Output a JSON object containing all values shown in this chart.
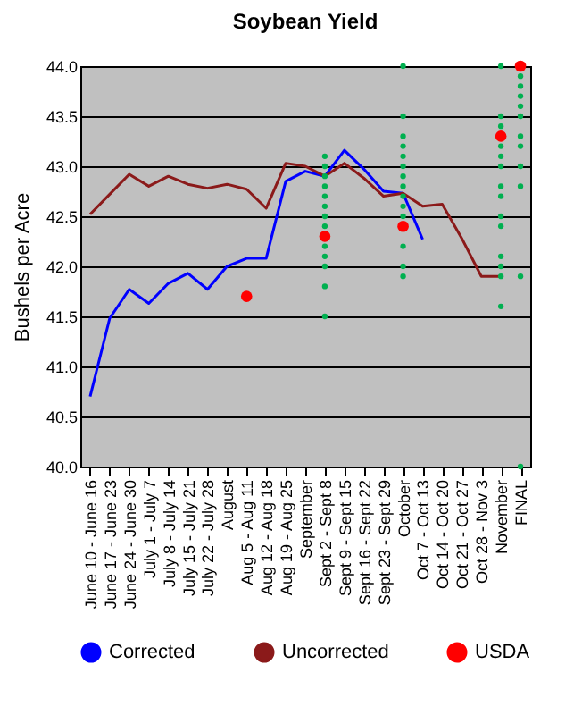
{
  "chart_data": {
    "type": "line",
    "title": "Soybean Yield",
    "ylabel": "Bushels per Acre",
    "categories": [
      "June 10 - June 16",
      "June 17 - June 23",
      "June 24 - June 30",
      "July 1 - July 7",
      "July 8 - July 14",
      "July 15 - July 21",
      "July 22 - July 28",
      "August",
      "Aug 5 - Aug 11",
      "Aug 12 - Aug 18",
      "Aug 19 - Aug 25",
      "September",
      "Sept 2 - Sept 8",
      "Sept 9 - Sept 15",
      "Sept 16 - Sept 22",
      "Sept 23 - Sept 29",
      "October",
      "Oct 7 - Oct 13",
      "Oct 14 - Oct 20",
      "Oct 21 - Oct 27",
      "Oct 28 - Nov 3",
      "November",
      "FINAL"
    ],
    "series": [
      {
        "name": "Corrected",
        "color": "#0000ff",
        "values": [
          40.7,
          41.48,
          41.77,
          41.63,
          41.83,
          41.93,
          41.77,
          42.0,
          42.08,
          42.08,
          42.85,
          42.95,
          42.9,
          43.16,
          42.97,
          42.75,
          42.73,
          42.27,
          null,
          null,
          null,
          null,
          null
        ]
      },
      {
        "name": "Uncorrected",
        "color": "#8b1a1a",
        "values": [
          42.52,
          42.72,
          42.92,
          42.8,
          42.9,
          42.82,
          42.78,
          42.82,
          42.77,
          42.58,
          43.03,
          43.0,
          42.9,
          43.03,
          42.88,
          42.7,
          42.73,
          42.6,
          42.62,
          42.28,
          41.9,
          41.9,
          null
        ]
      },
      {
        "type": "scatter",
        "color": "#00b050",
        "x": [
          "Sept 2 - Sept 8",
          "Sept 2 - Sept 8",
          "Sept 2 - Sept 8",
          "Sept 2 - Sept 8",
          "Sept 2 - Sept 8",
          "Sept 2 - Sept 8",
          "Sept 2 - Sept 8",
          "Sept 2 - Sept 8",
          "Sept 2 - Sept 8",
          "Sept 2 - Sept 8",
          "Sept 2 - Sept 8",
          "Sept 2 - Sept 8",
          "Sept 2 - Sept 8",
          "October",
          "October",
          "October",
          "October",
          "October",
          "October",
          "October",
          "October",
          "October",
          "October",
          "October",
          "October",
          "October",
          "October",
          "November",
          "November",
          "November",
          "November",
          "November",
          "November",
          "November",
          "November",
          "November",
          "November",
          "November",
          "November",
          "November",
          "November",
          "FINAL",
          "FINAL",
          "FINAL",
          "FINAL",
          "FINAL",
          "FINAL",
          "FINAL",
          "FINAL",
          "FINAL",
          "FINAL",
          "FINAL"
        ],
        "values": [
          43.1,
          43.0,
          42.9,
          42.8,
          42.7,
          42.6,
          42.5,
          42.4,
          42.2,
          42.1,
          42.0,
          41.8,
          41.5,
          44.0,
          43.5,
          43.3,
          43.2,
          43.1,
          43.0,
          42.9,
          42.8,
          42.7,
          42.6,
          42.5,
          42.2,
          42.0,
          41.9,
          44.0,
          43.5,
          43.4,
          43.2,
          43.1,
          43.0,
          42.8,
          42.7,
          42.5,
          42.4,
          42.1,
          42.0,
          41.9,
          41.6,
          43.9,
          43.8,
          43.7,
          43.6,
          43.5,
          43.3,
          43.2,
          43.0,
          42.8,
          41.9,
          40.0
        ]
      },
      {
        "name": "USDA",
        "type": "scatter",
        "color": "#ff0000",
        "x": [
          "Aug 5 - Aug 11",
          "Sept 2 - Sept 8",
          "October",
          "November",
          "FINAL"
        ],
        "values": [
          41.7,
          42.3,
          42.4,
          43.3,
          44.0
        ]
      }
    ],
    "ylim": [
      40,
      44
    ],
    "yticks": [
      {
        "value": 40,
        "label": "40.0"
      },
      {
        "value": 40.5,
        "label": "40.5"
      },
      {
        "value": 41,
        "label": "41.0"
      },
      {
        "value": 41.5,
        "label": "41.5"
      },
      {
        "value": 42,
        "label": "42.0"
      },
      {
        "value": 42.5,
        "label": "42.5"
      },
      {
        "value": 43,
        "label": "43.0"
      },
      {
        "value": 43.5,
        "label": "43.5"
      },
      {
        "value": 44,
        "label": "44.0"
      }
    ],
    "grid": "y",
    "legend": "bottom"
  }
}
